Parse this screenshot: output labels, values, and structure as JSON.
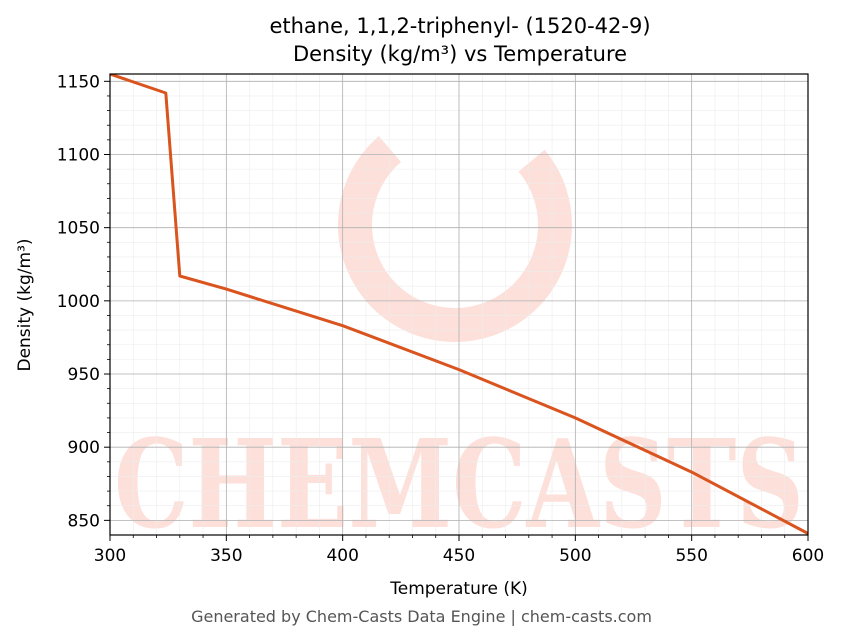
{
  "chart_data": {
    "type": "line",
    "title": "ethane, 1,1,2-triphenyl- (1520-42-9)",
    "subtitle": "Density (kg/m³) vs Temperature",
    "xlabel": "Temperature (K)",
    "ylabel": "Density (kg/m³)",
    "xlim": [
      300,
      600
    ],
    "ylim": [
      840,
      1155
    ],
    "x_ticks": [
      300,
      350,
      400,
      450,
      500,
      550,
      600
    ],
    "y_ticks": [
      850,
      900,
      950,
      1000,
      1050,
      1100,
      1150
    ],
    "grid": true,
    "line_color": "#d9541e",
    "series": [
      {
        "x": [
          300,
          324,
          330,
          350,
          400,
          450,
          500,
          550,
          600
        ],
        "y": [
          1155,
          1142,
          1017,
          1008,
          983,
          953,
          920,
          883,
          841
        ]
      }
    ]
  },
  "watermark": {
    "text": "CHEMCASTS",
    "color": "#fde0da"
  },
  "footer": "Generated by Chem-Casts Data Engine | chem-casts.com"
}
